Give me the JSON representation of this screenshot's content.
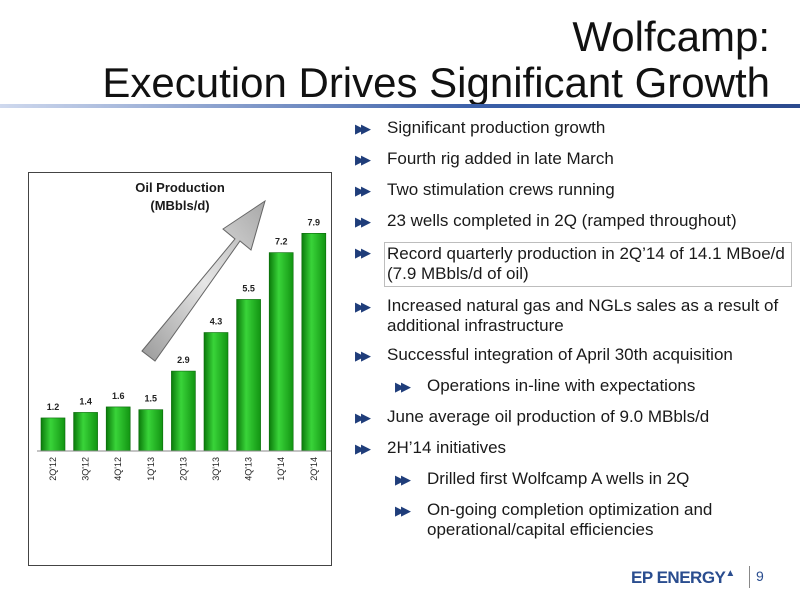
{
  "slide": {
    "title_line1": "Wolfcamp:",
    "title_line2": "Execution Drives Significant Growth",
    "page_number": "9",
    "logo_text": "EP ENERGY",
    "logo_mark": "▲"
  },
  "bullets": [
    {
      "text": "Significant production growth",
      "level": 1
    },
    {
      "text": "Fourth rig added in late March",
      "level": 1
    },
    {
      "text": "Two stimulation crews running",
      "level": 1
    },
    {
      "text": "23 wells completed in 2Q (ramped throughout)",
      "level": 1
    },
    {
      "text": "Record quarterly production in 2Q’14 of 14.1 MBoe/d  (7.9 MBbls/d of oil)",
      "level": 1,
      "boxed": true
    },
    {
      "text": "Increased natural gas and NGLs sales as a result of additional infrastructure",
      "level": 1
    },
    {
      "text": "Successful integration of April 30th acquisition",
      "level": 1
    },
    {
      "text": "Operations in-line with expectations",
      "level": 2
    },
    {
      "text": "June average oil production of 9.0 MBbls/d",
      "level": 1
    },
    {
      "text": "2H’14 initiatives",
      "level": 1
    },
    {
      "text": "Drilled first Wolfcamp A wells in 2Q",
      "level": 2
    },
    {
      "text": "On-going completion optimization and operational/capital efficiencies",
      "level": 2
    }
  ],
  "chart_data": {
    "type": "bar",
    "title_line1": "Oil Production",
    "title_line2": "(MBbls/d)",
    "categories": [
      "2Q'12",
      "3Q'12",
      "4Q'12",
      "1Q'13",
      "2Q'13",
      "3Q'13",
      "4Q'13",
      "1Q'14",
      "2Q'14"
    ],
    "values": [
      1.2,
      1.4,
      1.6,
      1.5,
      2.9,
      4.3,
      5.5,
      7.2,
      7.9
    ],
    "value_labels": [
      "1.2",
      "1.4",
      "1.6",
      "1.5",
      "2.9",
      "4.3",
      "5.5",
      "7.2",
      "7.9"
    ],
    "ylim": [
      0,
      9
    ],
    "grid": false,
    "bar_color": "#1fb31f",
    "annotation": "growth-arrow"
  }
}
